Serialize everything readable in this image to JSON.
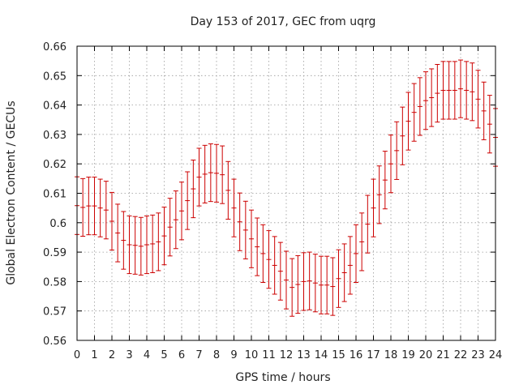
{
  "chart_data": {
    "type": "line",
    "title": "Day 153 of 2017, GEC from uqrg",
    "xlabel": "GPS time / hours",
    "ylabel": "Global Electron Content / GECUs",
    "xlim": [
      0,
      24
    ],
    "ylim": [
      0.56,
      0.66
    ],
    "x_ticks": [
      "0",
      "1",
      "2",
      "3",
      "4",
      "5",
      "6",
      "7",
      "8",
      "9",
      "10",
      "11",
      "12",
      "13",
      "14",
      "15",
      "16",
      "17",
      "18",
      "19",
      "20",
      "21",
      "22",
      "23",
      "24"
    ],
    "y_ticks": [
      "0.56",
      "0.57",
      "0.58",
      "0.59",
      "0.6",
      "0.61",
      "0.62",
      "0.63",
      "0.64",
      "0.65",
      "0.66"
    ],
    "grid": true,
    "error": 0.0098,
    "series": [
      {
        "x": [
          0.0,
          0.333,
          0.667,
          1.0,
          1.333,
          1.667,
          2.0,
          2.333,
          2.667,
          3.0,
          3.333,
          3.667,
          4.0,
          4.333,
          4.667,
          5.0,
          5.333,
          5.667,
          6.0,
          6.333,
          6.667,
          7.0,
          7.333,
          7.667,
          8.0,
          8.333,
          8.667,
          9.0,
          9.333,
          9.667,
          10.0,
          10.333,
          10.667,
          11.0,
          11.333,
          11.667,
          12.0,
          12.333,
          12.667,
          13.0,
          13.333,
          13.667,
          14.0,
          14.333,
          14.667,
          15.0,
          15.333,
          15.667,
          16.0,
          16.333,
          16.667,
          17.0,
          17.333,
          17.667,
          18.0,
          18.333,
          18.667,
          19.0,
          19.333,
          19.667,
          20.0,
          20.333,
          20.667,
          21.0,
          21.333,
          21.667,
          22.0,
          22.333,
          22.667,
          23.0,
          23.333,
          23.667,
          24.0
        ],
        "y": [
          0.6058,
          0.6052,
          0.6057,
          0.6057,
          0.605,
          0.6043,
          0.6005,
          0.5965,
          0.594,
          0.5925,
          0.5923,
          0.592,
          0.5925,
          0.5928,
          0.5935,
          0.5955,
          0.5985,
          0.601,
          0.604,
          0.6075,
          0.6115,
          0.6155,
          0.6165,
          0.617,
          0.6168,
          0.6163,
          0.611,
          0.605,
          0.6003,
          0.5975,
          0.5945,
          0.5918,
          0.5895,
          0.5875,
          0.5855,
          0.5835,
          0.5805,
          0.578,
          0.579,
          0.58,
          0.5802,
          0.5795,
          0.5788,
          0.5788,
          0.5783,
          0.581,
          0.583,
          0.5855,
          0.5895,
          0.5935,
          0.5995,
          0.605,
          0.6095,
          0.6145,
          0.62,
          0.6245,
          0.6295,
          0.6345,
          0.6375,
          0.6395,
          0.6415,
          0.6425,
          0.644,
          0.645,
          0.645,
          0.645,
          0.6455,
          0.645,
          0.6445,
          0.642,
          0.638,
          0.6335,
          0.629
        ]
      }
    ]
  }
}
